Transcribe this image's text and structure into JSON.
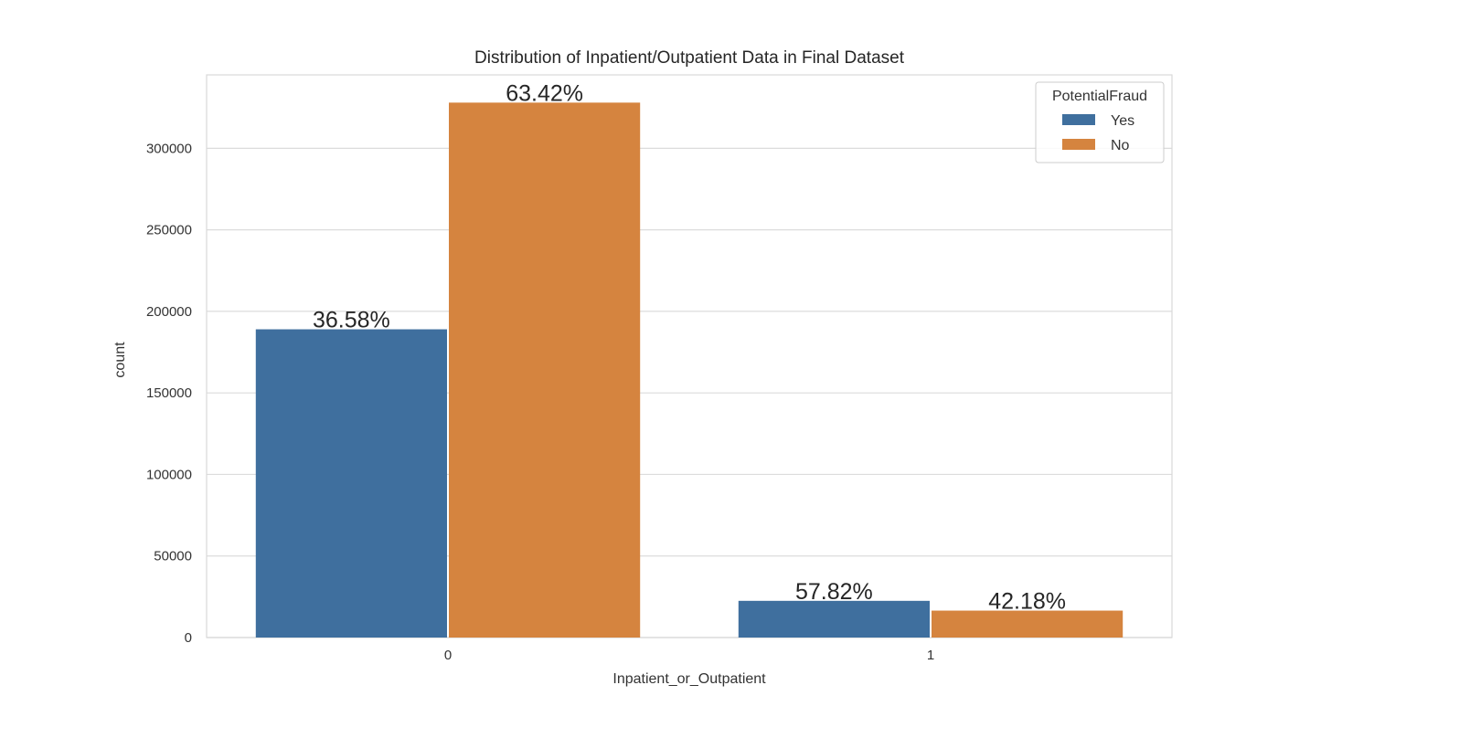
{
  "chart_data": {
    "type": "bar",
    "title": "Distribution of Inpatient/Outpatient Data in Final Dataset",
    "xlabel": "Inpatient_or_Outpatient",
    "ylabel": "count",
    "categories": [
      "0",
      "1"
    ],
    "yticks": [
      0,
      50000,
      100000,
      150000,
      200000,
      250000,
      300000
    ],
    "ylim": [
      0,
      345000
    ],
    "grid": true,
    "legend": {
      "title": "PotentialFraud",
      "position": "top-right"
    },
    "series": [
      {
        "name": "Yes",
        "color": "#3f6f9e",
        "values": [
          189000,
          22500
        ],
        "labels": [
          "36.58%",
          "57.82%"
        ]
      },
      {
        "name": "No",
        "color": "#d5843f",
        "values": [
          328000,
          16500
        ],
        "labels": [
          "63.42%",
          "42.18%"
        ]
      }
    ]
  }
}
